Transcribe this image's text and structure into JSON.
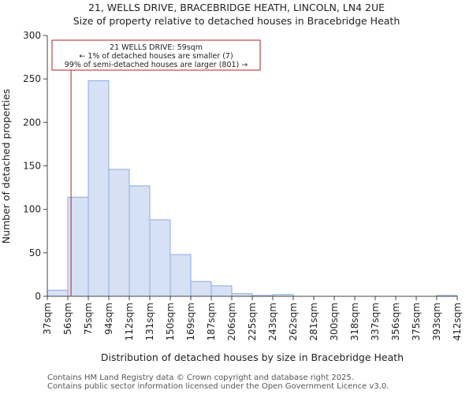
{
  "chart_data": {
    "type": "bar",
    "title": "21, WELLS DRIVE, BRACEBRIDGE HEATH, LINCOLN, LN4 2UE",
    "subtitle": "Size of property relative to detached houses in Bracebridge Heath",
    "xlabel": "Distribution of detached houses by size in Bracebridge Heath",
    "ylabel": "Number of detached properties",
    "bin_edges_sqm": [
      37,
      56,
      75,
      94,
      112,
      131,
      150,
      169,
      187,
      206,
      225,
      243,
      262,
      281,
      300,
      318,
      337,
      356,
      375,
      393,
      412
    ],
    "tick_labels": [
      "37sqm",
      "56sqm",
      "75sqm",
      "94sqm",
      "112sqm",
      "131sqm",
      "150sqm",
      "169sqm",
      "187sqm",
      "206sqm",
      "225sqm",
      "243sqm",
      "262sqm",
      "281sqm",
      "300sqm",
      "318sqm",
      "337sqm",
      "356sqm",
      "375sqm",
      "393sqm",
      "412sqm"
    ],
    "values": [
      7,
      114,
      248,
      146,
      127,
      88,
      48,
      17,
      12,
      3,
      1,
      2,
      0,
      0,
      0,
      0,
      0,
      0,
      0,
      1
    ],
    "ylim": [
      0,
      300
    ],
    "yticks": [
      0,
      50,
      100,
      150,
      200,
      250,
      300
    ],
    "marker_value_sqm": 59,
    "annotation": {
      "line1": "21 WELLS DRIVE: 59sqm",
      "line2": "← 1% of detached houses are smaller (7)",
      "line3": "99% of semi-detached houses are larger (801) →"
    },
    "colors": {
      "bar_fill": "#d6e1f5",
      "bar_edge": "#8faadc",
      "marker": "#b22222"
    }
  },
  "footer": {
    "line1": "Contains HM Land Registry data © Crown copyright and database right 2025.",
    "line2": "Contains public sector information licensed under the Open Government Licence v3.0."
  }
}
